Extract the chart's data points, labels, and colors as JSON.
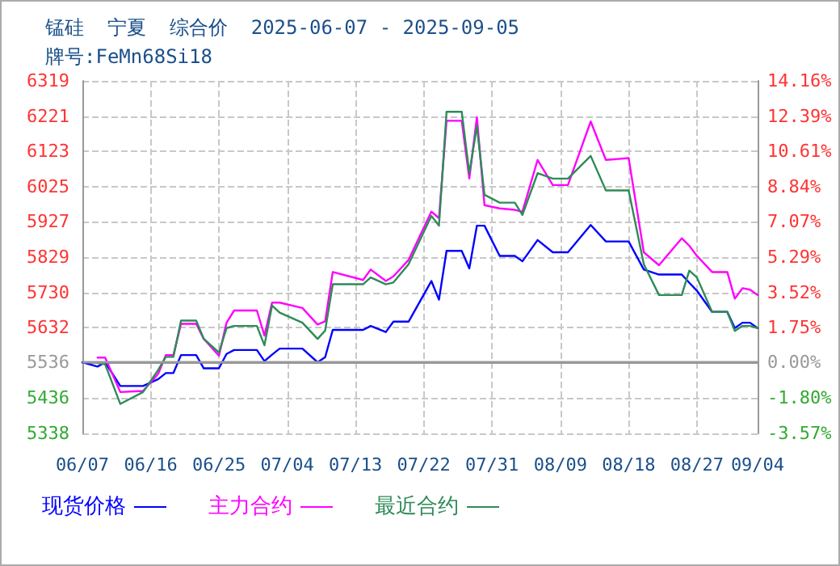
{
  "chart_data": {
    "type": "line",
    "title": "锰硅  宁夏  综合价  2025-06-07 - 2025-09-05",
    "subtitle": "牌号:FeMn68Si18",
    "x": [
      "2025-06-07",
      "2025-06-09",
      "2025-06-10",
      "2025-06-12",
      "2025-06-15",
      "2025-06-17",
      "2025-06-18",
      "2025-06-19",
      "2025-06-20",
      "2025-06-22",
      "2025-06-23",
      "2025-06-25",
      "2025-06-26",
      "2025-06-27",
      "2025-06-30",
      "2025-07-01",
      "2025-07-02",
      "2025-07-03",
      "2025-07-06",
      "2025-07-08",
      "2025-07-09",
      "2025-07-10",
      "2025-07-14",
      "2025-07-15",
      "2025-07-17",
      "2025-07-18",
      "2025-07-20",
      "2025-07-23",
      "2025-07-24",
      "2025-07-25",
      "2025-07-27",
      "2025-07-28",
      "2025-07-29",
      "2025-07-30",
      "2025-08-01",
      "2025-08-03",
      "2025-08-04",
      "2025-08-06",
      "2025-08-08",
      "2025-08-10",
      "2025-08-13",
      "2025-08-15",
      "2025-08-18",
      "2025-08-20",
      "2025-08-22",
      "2025-08-25",
      "2025-08-26",
      "2025-08-27",
      "2025-08-29",
      "2025-08-31",
      "2025-09-01",
      "2025-09-02",
      "2025-09-03",
      "2025-09-04"
    ],
    "series": [
      {
        "name": "现货价格",
        "color": "#0000ff",
        "values": [
          5536,
          5524,
          5536,
          5470,
          5470,
          5489,
          5506,
          5506,
          5556,
          5556,
          5519,
          5519,
          5559,
          5570,
          5570,
          5539,
          5557,
          5574,
          5574,
          5536,
          5550,
          5626,
          5626,
          5637,
          5620,
          5649,
          5649,
          5762,
          5710,
          5846,
          5846,
          5797,
          5916,
          5916,
          5832,
          5832,
          5817,
          5876,
          5842,
          5842,
          5918,
          5872,
          5872,
          5794,
          5780,
          5780,
          5757,
          5735,
          5676,
          5676,
          5631,
          5646,
          5646,
          5631
        ]
      },
      {
        "name": "主力合约",
        "color": "#ff00ff",
        "values": [
          null,
          5549,
          5549,
          5453,
          5456,
          5504,
          5556,
          5556,
          5643,
          5643,
          5601,
          5554,
          5646,
          5680,
          5680,
          5610,
          5702,
          5702,
          5687,
          5641,
          5650,
          5787,
          5765,
          5794,
          5762,
          5775,
          5821,
          5955,
          5937,
          6208,
          6208,
          6047,
          6218,
          5973,
          5964,
          5960,
          5955,
          6099,
          6029,
          6029,
          6206,
          6099,
          6104,
          5842,
          5806,
          5881,
          5860,
          5832,
          5787,
          5787,
          5713,
          5742,
          5738,
          5723
        ]
      },
      {
        "name": "最近合约",
        "color": "#2e8b57",
        "values": [
          null,
          5534,
          5530,
          5420,
          5453,
          5515,
          5551,
          5551,
          5652,
          5652,
          5601,
          5563,
          5631,
          5637,
          5637,
          5583,
          5694,
          5674,
          5646,
          5601,
          5624,
          5753,
          5753,
          5772,
          5753,
          5758,
          5809,
          5943,
          5916,
          6233,
          6233,
          6062,
          6193,
          6002,
          5980,
          5980,
          5946,
          6062,
          6047,
          6047,
          6110,
          6014,
          6014,
          5809,
          5723,
          5723,
          5791,
          5772,
          5676,
          5676,
          5623,
          5637,
          5637,
          5631
        ]
      }
    ],
    "xlim": [
      "2025-06-07",
      "2025-09-04"
    ],
    "xticks": [
      {
        "value": "2025-06-07",
        "label": "06/07"
      },
      {
        "value": "2025-06-16",
        "label": "06/16"
      },
      {
        "value": "2025-06-25",
        "label": "06/25"
      },
      {
        "value": "2025-07-04",
        "label": "07/04"
      },
      {
        "value": "2025-07-13",
        "label": "07/13"
      },
      {
        "value": "2025-07-22",
        "label": "07/22"
      },
      {
        "value": "2025-07-31",
        "label": "07/31"
      },
      {
        "value": "2025-08-09",
        "label": "08/09"
      },
      {
        "value": "2025-08-18",
        "label": "08/18"
      },
      {
        "value": "2025-08-27",
        "label": "08/27"
      },
      {
        "value": "2025-09-04",
        "label": "09/04"
      }
    ],
    "ylim": [
      5338,
      6319
    ],
    "yticks": [
      5338,
      5436,
      5536,
      5632,
      5730,
      5829,
      5927,
      6025,
      6123,
      6221,
      6319
    ],
    "y2lim": [
      -3.57,
      14.16
    ],
    "y2ticks": [
      {
        "value": -3.57,
        "label": "-3.57%"
      },
      {
        "value": -1.8,
        "label": "-1.80%"
      },
      {
        "value": 0,
        "label": "0.00%"
      },
      {
        "value": 1.75,
        "label": "1.75%"
      },
      {
        "value": 3.52,
        "label": "3.52%"
      },
      {
        "value": 5.29,
        "label": "5.29%"
      },
      {
        "value": 7.07,
        "label": "7.07%"
      },
      {
        "value": 8.84,
        "label": "8.84%"
      },
      {
        "value": 10.61,
        "label": "10.61%"
      },
      {
        "value": 12.39,
        "label": "12.39%"
      },
      {
        "value": 14.16,
        "label": "14.16%"
      }
    ],
    "ref_lines": [
      {
        "axis": "y",
        "value": 5536,
        "color": "#999999",
        "line_style": "solid"
      }
    ],
    "grid": true,
    "legend": "bottom",
    "marker": "none",
    "line_style": "solid"
  }
}
